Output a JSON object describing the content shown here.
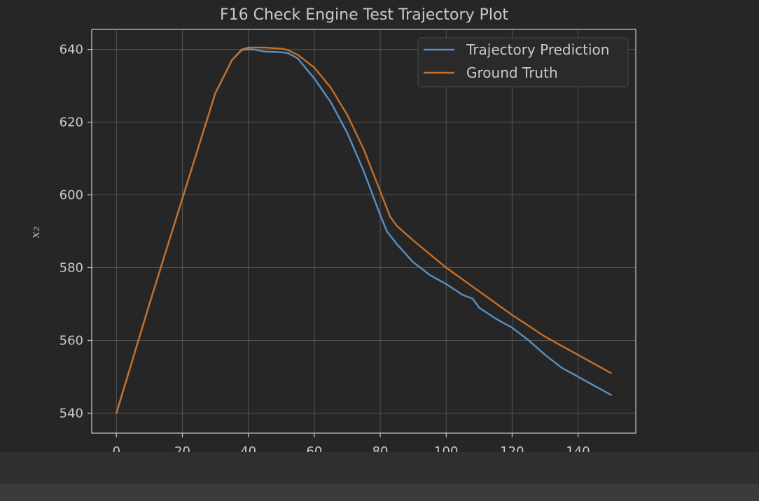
{
  "chart_data": {
    "type": "line",
    "title": "F16 Check Engine Test Trajectory Plot",
    "xlabel": "",
    "ylabel": "x₂",
    "xlim": [
      -7.5,
      157.5
    ],
    "ylim": [
      534.5,
      645.5
    ],
    "xticks": [
      0,
      20,
      40,
      60,
      80,
      100,
      120,
      140
    ],
    "yticks": [
      540,
      560,
      580,
      600,
      620,
      640
    ],
    "grid": true,
    "legend": "top-right",
    "series": [
      {
        "name": "Trajectory Prediction",
        "color": "#5a8fbf",
        "x": [
          0,
          10,
          20,
          30,
          35,
          38,
          40,
          42,
          45,
          50,
          52,
          55,
          60,
          65,
          70,
          75,
          80,
          82,
          85,
          90,
          95,
          100,
          105,
          108,
          110,
          115,
          120,
          125,
          130,
          135,
          140,
          145,
          150
        ],
        "y": [
          540,
          570,
          599,
          628,
          637,
          639.8,
          640,
          639.9,
          639.4,
          639.2,
          639,
          637.5,
          632,
          625.5,
          617,
          606.5,
          594.5,
          590,
          586.5,
          581.5,
          578,
          575.5,
          572.5,
          571.5,
          569,
          566,
          563.5,
          560,
          556,
          552.5,
          550,
          547.5,
          545
        ]
      },
      {
        "name": "Ground Truth",
        "color": "#c46f2a",
        "x": [
          0,
          10,
          20,
          30,
          35,
          38,
          40,
          45,
          50,
          52,
          55,
          60,
          65,
          70,
          75,
          80,
          83,
          85,
          90,
          100,
          110,
          120,
          130,
          140,
          150
        ],
        "y": [
          540,
          570,
          599,
          628,
          637,
          640,
          640.5,
          640.5,
          640.2,
          639.8,
          638.5,
          635,
          629.5,
          622,
          612.5,
          601,
          594,
          591.5,
          587.5,
          580,
          573.5,
          567,
          561,
          556,
          551
        ]
      }
    ]
  }
}
